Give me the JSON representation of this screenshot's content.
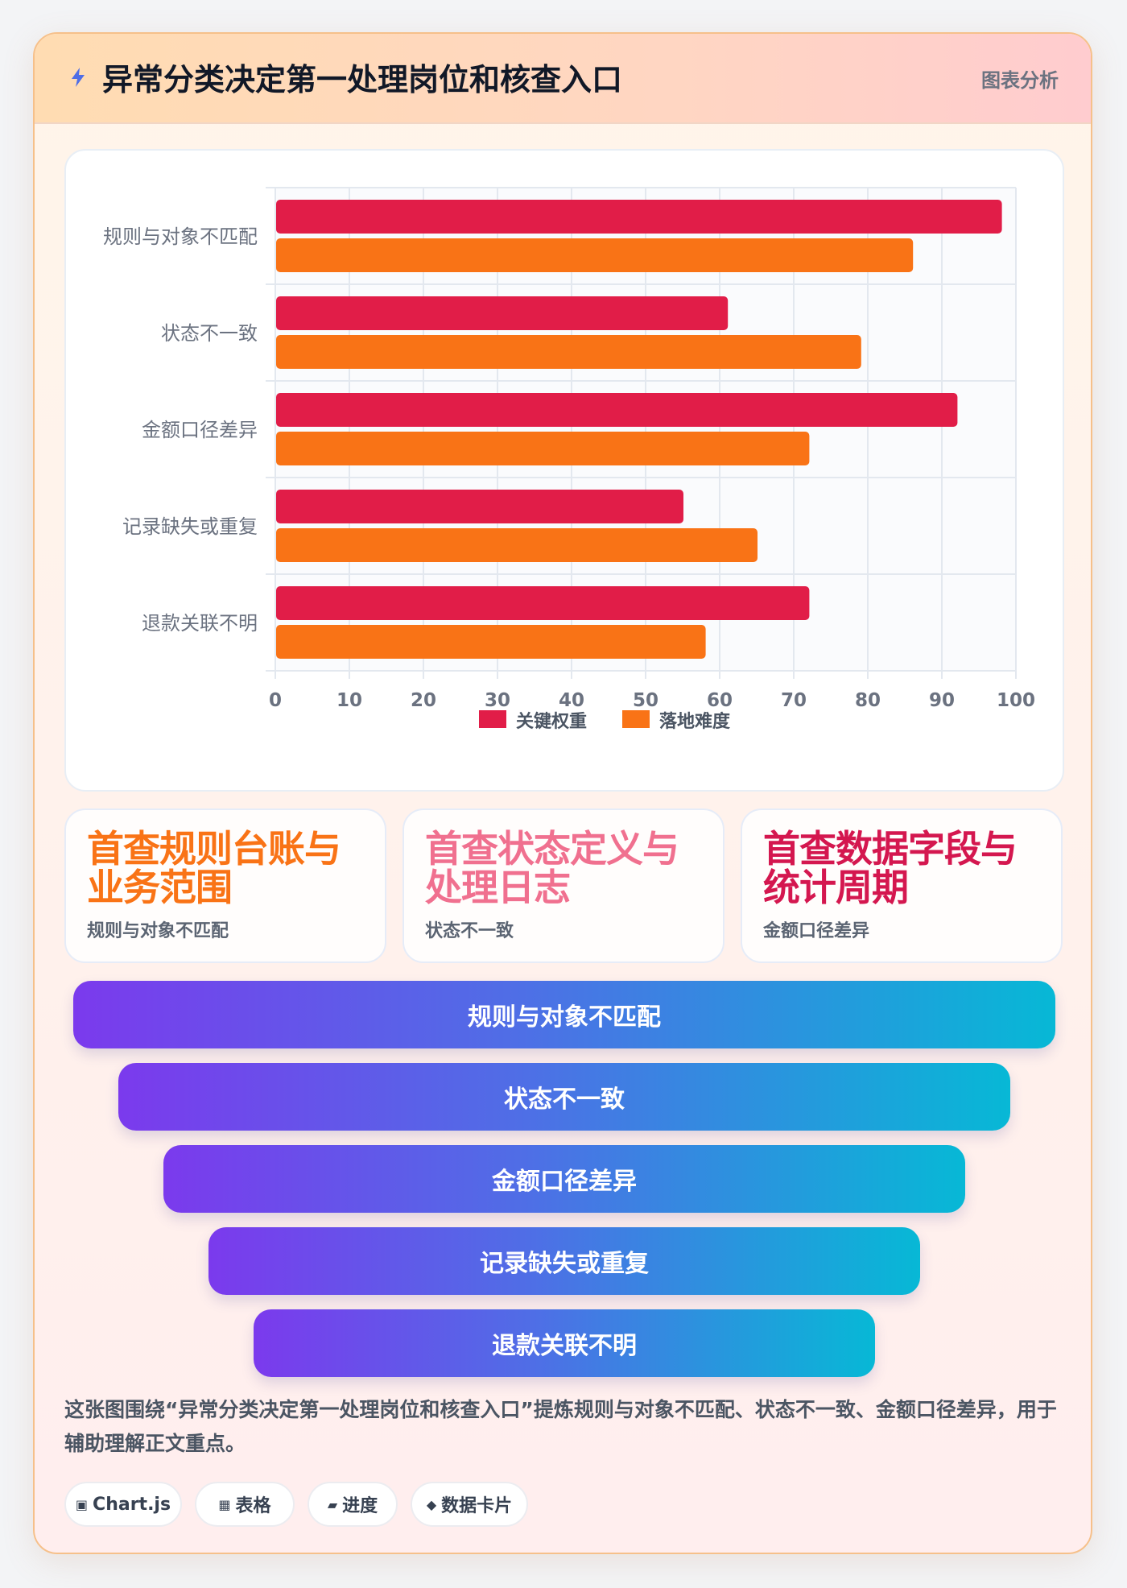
{
  "header": {
    "icon": "lightning-icon",
    "title": "异常分类决定第一处理岗位和核查入口",
    "tag": "图表分析"
  },
  "chart_data": {
    "type": "bar",
    "orientation": "horizontal",
    "categories": [
      "规则与对象不匹配",
      "状态不一致",
      "金额口径差异",
      "记录缺失或重复",
      "退款关联不明"
    ],
    "series": [
      {
        "name": "关键权重",
        "values": [
          98,
          61,
          92,
          55,
          72
        ],
        "color": "#e11d48"
      },
      {
        "name": "落地难度",
        "values": [
          86,
          79,
          72,
          65,
          58
        ],
        "color": "#f97316"
      }
    ],
    "xlim": [
      0,
      100
    ],
    "x_ticks": [
      "0",
      "10",
      "20",
      "30",
      "40",
      "50",
      "60",
      "70",
      "80",
      "90",
      "100"
    ],
    "grid": true,
    "legend": "bottom-center"
  },
  "cards": [
    {
      "big": "首查规则台账与业务范围",
      "small": "规则与对象不匹配",
      "color": "#f97316"
    },
    {
      "big": "首查状态定义与处理日志",
      "small": "状态不一致",
      "color": "#f0708f"
    },
    {
      "big": "首查数据字段与统计周期",
      "small": "金额口径差异",
      "color": "#d4174f"
    }
  ],
  "funnel": [
    "规则与对象不匹配",
    "状态不一致",
    "金额口径差异",
    "记录缺失或重复",
    "退款关联不明"
  ],
  "description": "这张图围绕“异常分类决定第一处理岗位和核查入口”提炼规则与对象不匹配、状态不一致、金额口径差异，用于辅助理解正文重点。",
  "chips": [
    {
      "icon": "▣",
      "label": "Chart.js"
    },
    {
      "icon": "▦",
      "label": "表格"
    },
    {
      "icon": "▰",
      "label": "进度"
    },
    {
      "icon": "◆",
      "label": "数据卡片"
    }
  ]
}
